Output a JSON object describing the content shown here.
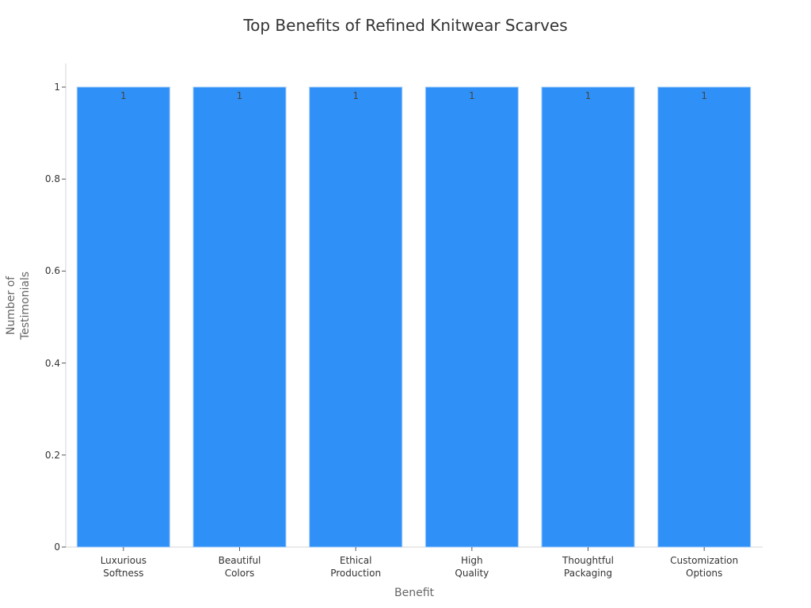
{
  "chart_data": {
    "type": "bar",
    "title": "Top Benefits of Refined Knitwear Scarves",
    "xlabel": "Benefit",
    "ylabel_lines": [
      "Number of",
      "Testimonials"
    ],
    "categories": [
      "Luxurious Softness",
      "Beautiful Colors",
      "Ethical Production",
      "High Quality",
      "Thoughtful Packaging",
      "Customization Options"
    ],
    "values": [
      1,
      1,
      1,
      1,
      1,
      1
    ],
    "data_labels": [
      "1",
      "1",
      "1",
      "1",
      "1",
      "1"
    ],
    "ylim": [
      0,
      1.05
    ],
    "yticks": [
      0,
      0.2,
      0.4,
      0.6,
      0.8,
      1
    ],
    "ytick_labels": [
      "0",
      "0.2",
      "0.4",
      "0.6",
      "0.8",
      "1"
    ],
    "grid": false,
    "bar_color": "#2f91f7",
    "bar_edge_color": "#9fcbfa"
  }
}
